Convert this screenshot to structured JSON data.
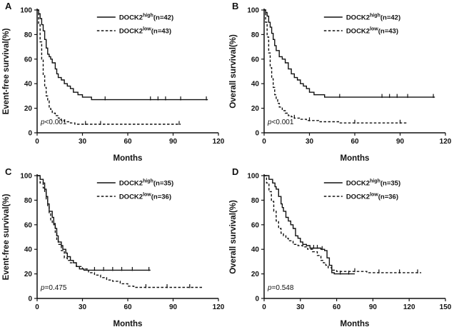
{
  "figure": {
    "background": "#ffffff",
    "line_color": "#111111",
    "text_color": "#111111"
  },
  "chart_data": [
    {
      "type": "line",
      "label": "A",
      "xlabel": "Months",
      "ylabel": "Event-free survival(%)",
      "p_italic": "p",
      "p_rest": "<0.001",
      "xlim": [
        0,
        120
      ],
      "xticks": [
        0,
        30,
        60,
        90,
        120
      ],
      "ylim": [
        0,
        100
      ],
      "yticks": [
        0,
        20,
        40,
        60,
        80,
        100
      ],
      "grid": false,
      "legend_position": "top-right",
      "legend": [
        {
          "base": "DOCK2",
          "sup": "high",
          "suffix": "(n=42)",
          "style": "solid"
        },
        {
          "base": "DOCK2",
          "sup": "low",
          "suffix": "(n=43)",
          "style": "dashed"
        }
      ],
      "series": [
        {
          "name": "DOCK2 high (n=42)",
          "style": "solid",
          "points": [
            [
              0,
              100
            ],
            [
              1,
              97
            ],
            [
              2,
              93
            ],
            [
              3,
              88
            ],
            [
              4,
              83
            ],
            [
              5,
              76
            ],
            [
              6,
              69
            ],
            [
              7,
              64
            ],
            [
              8,
              62
            ],
            [
              9,
              60
            ],
            [
              10,
              57
            ],
            [
              12,
              52
            ],
            [
              13,
              48
            ],
            [
              14,
              45
            ],
            [
              16,
              43
            ],
            [
              18,
              40
            ],
            [
              20,
              38
            ],
            [
              22,
              36
            ],
            [
              24,
              33
            ],
            [
              27,
              31
            ],
            [
              30,
              29
            ],
            [
              36,
              27
            ],
            [
              113,
              27
            ]
          ],
          "censors": [
            [
              45,
              27
            ],
            [
              75,
              27
            ],
            [
              80,
              27
            ],
            [
              85,
              27
            ],
            [
              95,
              27
            ],
            [
              112,
              27
            ]
          ]
        },
        {
          "name": "DOCK2 low (n=43)",
          "style": "dashed",
          "points": [
            [
              0,
              100
            ],
            [
              1,
              88
            ],
            [
              2,
              74
            ],
            [
              3,
              60
            ],
            [
              4,
              47
            ],
            [
              5,
              37
            ],
            [
              6,
              30
            ],
            [
              7,
              26
            ],
            [
              8,
              21
            ],
            [
              9,
              19
            ],
            [
              10,
              16
            ],
            [
              12,
              14
            ],
            [
              14,
              12
            ],
            [
              16,
              10
            ],
            [
              18,
              9
            ],
            [
              22,
              8
            ],
            [
              25,
              7
            ],
            [
              95,
              7
            ]
          ],
          "censors": [
            [
              32,
              7
            ],
            [
              42,
              7
            ],
            [
              94,
              7
            ]
          ]
        }
      ]
    },
    {
      "type": "line",
      "label": "B",
      "xlabel": "Months",
      "ylabel": "Overall survival(%)",
      "p_italic": "p",
      "p_rest": "<0.001",
      "xlim": [
        0,
        120
      ],
      "xticks": [
        0,
        30,
        60,
        90,
        120
      ],
      "ylim": [
        0,
        100
      ],
      "yticks": [
        0,
        20,
        40,
        60,
        80,
        100
      ],
      "grid": false,
      "legend_position": "top-right",
      "legend": [
        {
          "base": "DOCK2",
          "sup": "high",
          "suffix": "(n=42)",
          "style": "solid"
        },
        {
          "base": "DOCK2",
          "sup": "low",
          "suffix": "(n=43)",
          "style": "dashed"
        }
      ],
      "series": [
        {
          "name": "DOCK2 high (n=42)",
          "style": "solid",
          "points": [
            [
              0,
              100
            ],
            [
              1,
              98
            ],
            [
              2,
              95
            ],
            [
              3,
              90
            ],
            [
              4,
              86
            ],
            [
              5,
              81
            ],
            [
              6,
              76
            ],
            [
              7,
              71
            ],
            [
              8,
              67
            ],
            [
              10,
              62
            ],
            [
              12,
              60
            ],
            [
              14,
              57
            ],
            [
              16,
              52
            ],
            [
              18,
              48
            ],
            [
              20,
              45
            ],
            [
              22,
              43
            ],
            [
              24,
              40
            ],
            [
              26,
              38
            ],
            [
              28,
              36
            ],
            [
              30,
              33
            ],
            [
              33,
              31
            ],
            [
              40,
              29
            ],
            [
              113,
              29
            ]
          ],
          "censors": [
            [
              50,
              29
            ],
            [
              78,
              29
            ],
            [
              83,
              29
            ],
            [
              88,
              29
            ],
            [
              95,
              29
            ],
            [
              112,
              29
            ]
          ]
        },
        {
          "name": "DOCK2 low (n=43)",
          "style": "dashed",
          "points": [
            [
              0,
              100
            ],
            [
              1,
              90
            ],
            [
              2,
              78
            ],
            [
              3,
              65
            ],
            [
              4,
              53
            ],
            [
              5,
              44
            ],
            [
              6,
              37
            ],
            [
              7,
              31
            ],
            [
              8,
              27
            ],
            [
              9,
              24
            ],
            [
              10,
              21
            ],
            [
              12,
              18
            ],
            [
              14,
              16
            ],
            [
              16,
              14
            ],
            [
              18,
              13
            ],
            [
              20,
              12
            ],
            [
              24,
              11
            ],
            [
              28,
              10
            ],
            [
              36,
              9
            ],
            [
              50,
              8
            ],
            [
              95,
              8
            ]
          ],
          "censors": [
            [
              20,
              12
            ],
            [
              30,
              10
            ],
            [
              60,
              8
            ],
            [
              90,
              8
            ]
          ]
        }
      ]
    },
    {
      "type": "line",
      "label": "C",
      "xlabel": "Months",
      "ylabel": "Event-free survival(%)",
      "p_italic": "p",
      "p_rest": "=0.475",
      "xlim": [
        0,
        120
      ],
      "xticks": [
        0,
        30,
        60,
        90,
        120
      ],
      "ylim": [
        0,
        100
      ],
      "yticks": [
        0,
        20,
        40,
        60,
        80,
        100
      ],
      "grid": false,
      "legend_position": "top-right",
      "legend": [
        {
          "base": "DOCK2",
          "sup": "high",
          "suffix": "(n=35)",
          "style": "solid"
        },
        {
          "base": "DOCK2",
          "sup": "low",
          "suffix": "(n=36)",
          "style": "dashed"
        }
      ],
      "series": [
        {
          "name": "DOCK2 high (n=35)",
          "style": "solid",
          "points": [
            [
              0,
              100
            ],
            [
              2,
              97
            ],
            [
              4,
              94
            ],
            [
              5,
              89
            ],
            [
              6,
              83
            ],
            [
              7,
              77
            ],
            [
              8,
              71
            ],
            [
              10,
              66
            ],
            [
              11,
              60
            ],
            [
              12,
              57
            ],
            [
              13,
              51
            ],
            [
              14,
              46
            ],
            [
              16,
              43
            ],
            [
              17,
              40
            ],
            [
              19,
              37
            ],
            [
              20,
              34
            ],
            [
              22,
              31
            ],
            [
              24,
              29
            ],
            [
              26,
              26
            ],
            [
              28,
              24
            ],
            [
              31,
              23
            ],
            [
              75,
              23
            ]
          ],
          "censors": [
            [
              38,
              23
            ],
            [
              44,
              23
            ],
            [
              50,
              23
            ],
            [
              56,
              23
            ],
            [
              63,
              23
            ],
            [
              74,
              23
            ]
          ]
        },
        {
          "name": "DOCK2 low (n=36)",
          "style": "dashed",
          "points": [
            [
              0,
              100
            ],
            [
              2,
              94
            ],
            [
              4,
              90
            ],
            [
              5,
              86
            ],
            [
              6,
              81
            ],
            [
              7,
              75
            ],
            [
              8,
              69
            ],
            [
              9,
              64
            ],
            [
              10,
              61
            ],
            [
              12,
              53
            ],
            [
              13,
              47
            ],
            [
              14,
              44
            ],
            [
              16,
              39
            ],
            [
              18,
              33
            ],
            [
              20,
              31
            ],
            [
              22,
              29
            ],
            [
              26,
              26
            ],
            [
              30,
              24
            ],
            [
              34,
              21
            ],
            [
              38,
              19
            ],
            [
              42,
              17
            ],
            [
              46,
              15
            ],
            [
              50,
              14
            ],
            [
              55,
              12
            ],
            [
              60,
              10
            ],
            [
              64,
              9
            ],
            [
              110,
              9
            ]
          ],
          "censors": [
            [
              72,
              9
            ],
            [
              86,
              9
            ],
            [
              101,
              9
            ]
          ]
        }
      ]
    },
    {
      "type": "line",
      "label": "D",
      "xlabel": "Months",
      "ylabel": "Overall survival(%)",
      "p_italic": "p",
      "p_rest": "=0.548",
      "xlim": [
        0,
        150
      ],
      "xticks": [
        0,
        30,
        60,
        90,
        120,
        150
      ],
      "ylim": [
        0,
        100
      ],
      "yticks": [
        0,
        20,
        40,
        60,
        80,
        100
      ],
      "grid": false,
      "legend_position": "top-right",
      "legend": [
        {
          "base": "DOCK2",
          "sup": "high",
          "suffix": "(n=35)",
          "style": "solid"
        },
        {
          "base": "DOCK2",
          "sup": "low",
          "suffix": "(n=36)",
          "style": "dashed"
        }
      ],
      "series": [
        {
          "name": "DOCK2 high (n=35)",
          "style": "solid",
          "points": [
            [
              0,
              100
            ],
            [
              4,
              97
            ],
            [
              7,
              94
            ],
            [
              9,
              91
            ],
            [
              10,
              89
            ],
            [
              12,
              83
            ],
            [
              14,
              77
            ],
            [
              15,
              74
            ],
            [
              16,
              71
            ],
            [
              18,
              66
            ],
            [
              20,
              63
            ],
            [
              22,
              60
            ],
            [
              24,
              57
            ],
            [
              26,
              51
            ],
            [
              28,
              49
            ],
            [
              30,
              46
            ],
            [
              32,
              44
            ],
            [
              35,
              43
            ],
            [
              38,
              41
            ],
            [
              47,
              40
            ],
            [
              50,
              39
            ],
            [
              52,
              33
            ],
            [
              54,
              27
            ],
            [
              56,
              21
            ],
            [
              58,
              20
            ],
            [
              75,
              20
            ]
          ],
          "censors": [
            [
              41,
              41
            ],
            [
              44,
              41
            ],
            [
              48,
              40
            ],
            [
              63,
              20
            ],
            [
              70,
              20
            ]
          ]
        },
        {
          "name": "DOCK2 low (n=36)",
          "style": "dashed",
          "points": [
            [
              0,
              100
            ],
            [
              2,
              94
            ],
            [
              4,
              87
            ],
            [
              6,
              79
            ],
            [
              8,
              71
            ],
            [
              10,
              63
            ],
            [
              12,
              57
            ],
            [
              14,
              53
            ],
            [
              16,
              51
            ],
            [
              18,
              49
            ],
            [
              20,
              47
            ],
            [
              24,
              44
            ],
            [
              28,
              43
            ],
            [
              32,
              42
            ],
            [
              36,
              40
            ],
            [
              40,
              38
            ],
            [
              44,
              35
            ],
            [
              47,
              31
            ],
            [
              49,
              29
            ],
            [
              51,
              27
            ],
            [
              53,
              25
            ],
            [
              56,
              23
            ],
            [
              60,
              22
            ],
            [
              85,
              21
            ],
            [
              130,
              21
            ]
          ],
          "censors": [
            [
              75,
              22
            ],
            [
              95,
              21
            ],
            [
              112,
              21
            ],
            [
              127,
              21
            ]
          ]
        }
      ]
    }
  ]
}
